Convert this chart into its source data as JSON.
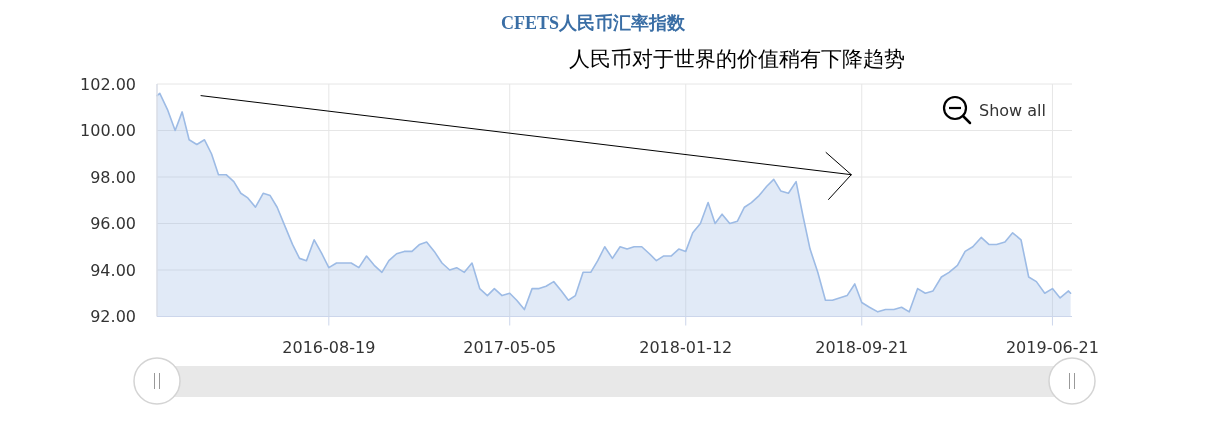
{
  "chart_data": {
    "type": "area",
    "title": "CFETS人民币汇率指数",
    "subtitle": "人民币对于世界的价值稍有下降趋势",
    "x": [
      "2015-12-17",
      "2015-12-21",
      "2016-01-01",
      "2016-01-12",
      "2016-01-22",
      "2016-02-01",
      "2016-02-12",
      "2016-02-23",
      "2016-03-04",
      "2016-03-14",
      "2016-03-25",
      "2016-04-05",
      "2016-04-15",
      "2016-04-25",
      "2016-05-06",
      "2016-05-17",
      "2016-05-27",
      "2016-06-06",
      "2016-06-17",
      "2016-06-28",
      "2016-07-08",
      "2016-07-18",
      "2016-07-29",
      "2016-08-09",
      "2016-08-19",
      "2016-08-30",
      "2016-09-10",
      "2016-09-20",
      "2016-10-01",
      "2016-10-12",
      "2016-10-23",
      "2016-11-03",
      "2016-11-13",
      "2016-11-24",
      "2016-12-05",
      "2016-12-16",
      "2016-12-27",
      "2017-01-06",
      "2017-01-17",
      "2017-01-28",
      "2017-02-08",
      "2017-02-18",
      "2017-03-01",
      "2017-03-12",
      "2017-03-23",
      "2017-04-03",
      "2017-04-13",
      "2017-04-24",
      "2017-05-05",
      "2017-05-15",
      "2017-05-26",
      "2017-06-06",
      "2017-06-16",
      "2017-06-26",
      "2017-07-07",
      "2017-07-18",
      "2017-07-28",
      "2017-08-07",
      "2017-08-18",
      "2017-08-29",
      "2017-09-08",
      "2017-09-18",
      "2017-09-29",
      "2017-10-10",
      "2017-10-20",
      "2017-10-30",
      "2017-11-10",
      "2017-11-21",
      "2017-12-01",
      "2017-12-11",
      "2017-12-22",
      "2018-01-02",
      "2018-01-12",
      "2018-01-22",
      "2018-02-02",
      "2018-02-13",
      "2018-02-23",
      "2018-03-05",
      "2018-03-16",
      "2018-03-27",
      "2018-04-06",
      "2018-04-16",
      "2018-04-27",
      "2018-05-08",
      "2018-05-18",
      "2018-05-28",
      "2018-06-08",
      "2018-06-19",
      "2018-06-29",
      "2018-07-09",
      "2018-07-20",
      "2018-07-31",
      "2018-08-10",
      "2018-08-20",
      "2018-08-31",
      "2018-09-11",
      "2018-09-21",
      "2018-10-02",
      "2018-10-14",
      "2018-10-25",
      "2018-11-06",
      "2018-11-17",
      "2018-11-28",
      "2018-12-10",
      "2018-12-21",
      "2019-01-01",
      "2019-01-13",
      "2019-01-24",
      "2019-02-05",
      "2019-02-16",
      "2019-02-27",
      "2019-03-11",
      "2019-03-22",
      "2019-04-02",
      "2019-04-14",
      "2019-04-25",
      "2019-05-07",
      "2019-05-18",
      "2019-05-29",
      "2019-06-10",
      "2019-06-21",
      "2019-07-02",
      "2019-07-14",
      "2019-07-17"
    ],
    "series": [
      {
        "color": "#9dbbe5",
        "values": [
          101.5,
          101.6,
          100.9,
          100.0,
          100.8,
          99.6,
          99.4,
          99.6,
          99.0,
          98.1,
          98.1,
          97.8,
          97.3,
          97.1,
          96.7,
          97.3,
          97.2,
          96.7,
          95.9,
          95.1,
          94.5,
          94.4,
          95.3,
          94.7,
          94.1,
          94.3,
          94.3,
          94.3,
          94.1,
          94.6,
          94.2,
          93.9,
          94.4,
          94.7,
          94.8,
          94.8,
          95.1,
          95.2,
          94.8,
          94.3,
          94.0,
          94.1,
          93.9,
          94.3,
          93.2,
          92.9,
          93.2,
          92.9,
          93.0,
          92.7,
          92.3,
          93.2,
          93.2,
          93.3,
          93.5,
          93.1,
          92.7,
          92.9,
          93.9,
          93.9,
          94.4,
          95.0,
          94.5,
          95.0,
          94.9,
          95.0,
          95.0,
          94.7,
          94.4,
          94.6,
          94.6,
          94.9,
          94.8,
          95.6,
          96.0,
          96.9,
          96.0,
          96.4,
          96.0,
          96.1,
          96.7,
          96.9,
          97.2,
          97.6,
          97.9,
          97.4,
          97.3,
          97.8,
          96.3,
          94.9,
          93.9,
          92.7,
          92.7,
          92.8,
          92.9,
          93.4,
          92.6,
          92.4,
          92.2,
          92.3,
          92.3,
          92.4,
          92.2,
          93.2,
          93.0,
          93.1,
          93.7,
          93.9,
          94.2,
          94.8,
          95.0,
          95.4,
          95.1,
          95.1,
          95.2,
          95.6,
          95.3,
          93.7,
          93.5,
          93.0,
          93.2,
          92.8,
          93.1,
          93.0
        ]
      },
      {
        "type": "line",
        "color": "#000000",
        "x": [
          "2016-02-18",
          "2018-09-06"
        ],
        "values": [
          101.5,
          98.1
        ]
      }
    ],
    "xlim": [
      "2015-12-17",
      "2019-07-19"
    ],
    "xticks": [
      "2016-08-19",
      "2017-05-05",
      "2018-01-12",
      "2018-09-21",
      "2019-06-21"
    ],
    "ylim": [
      92,
      102
    ],
    "yticks": [
      {
        "value": 92,
        "label": "92.00"
      },
      {
        "value": 94,
        "label": "94.00"
      },
      {
        "value": 96,
        "label": "96.00"
      },
      {
        "value": 98,
        "label": "98.00"
      },
      {
        "value": 100,
        "label": "100.00"
      },
      {
        "value": 102,
        "label": "102.00"
      }
    ],
    "grid": true,
    "annotations": [
      "Show all"
    ]
  }
}
